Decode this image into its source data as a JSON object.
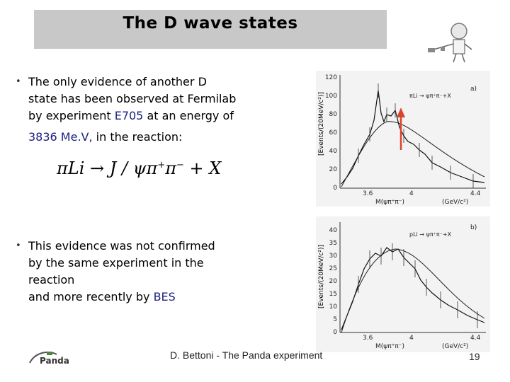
{
  "slide": {
    "title": "The D wave states",
    "bullet1": {
      "line1": "The only evidence of another D",
      "line2": "state has been observed at Fermilab",
      "line3_pre": "by experiment ",
      "line3_hl": "E705",
      "line3_post": " at an energy of",
      "line4_hl": "3836 Me.V,",
      "line4_post": " in the reaction:"
    },
    "formula": {
      "part1": "πLi → J / ψπ",
      "sup1": "+",
      "part2": "π",
      "sup2": "−",
      "part3": " + X"
    },
    "bullet2": {
      "line1": "This evidence was not confirmed",
      "line2": "by the same experiment in the",
      "line3": "reaction",
      "line4_pre": "and more recently by ",
      "line4_hl": "BES"
    },
    "footer": "D. Bettoni  - The Panda experiment",
    "page_number": "19",
    "logo_text": "Panda"
  },
  "plot_a": {
    "panel": "a)",
    "ylabel": "[Events/(20MeV/c²)]",
    "xlabel": "M(ψπ⁺π⁻)",
    "xunit": "(GeV/c²)",
    "reaction": "πLi → ψπ⁺π⁻+X",
    "yticks": [
      "120",
      "100",
      "80",
      "60",
      "40",
      "20",
      "0"
    ],
    "xticks": [
      "3.6",
      "4",
      "4.4"
    ]
  },
  "plot_b": {
    "panel": "b)",
    "ylabel": "[Events/(20MeV/c²)]",
    "xlabel": "M(ψπ⁺π⁻)",
    "xunit": "(GeV/c²)",
    "reaction": "pLi → ψπ⁺π⁻+X",
    "yticks": [
      "40",
      "35",
      "30",
      "25",
      "20",
      "15",
      "10",
      "5",
      "0"
    ],
    "xticks": [
      "3.6",
      "4",
      "4.4"
    ]
  },
  "colors": {
    "arrow": "#d9442c",
    "title_bg": "#c8c8c8",
    "highlight": "#1a237e"
  }
}
